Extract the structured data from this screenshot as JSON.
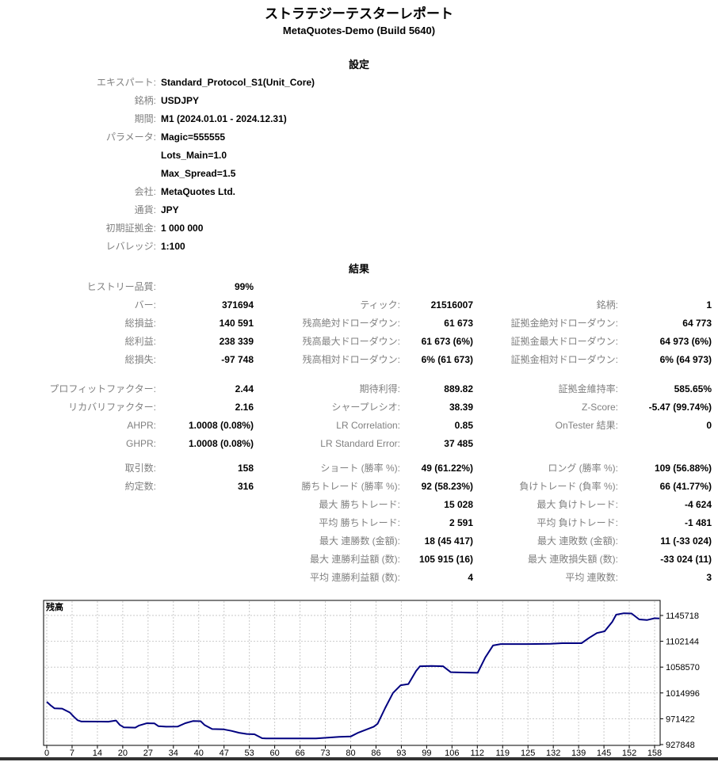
{
  "report": {
    "title": "ストラテジーテスターレポート",
    "subtitle": "MetaQuotes-Demo (Build 5640)"
  },
  "settings": {
    "header": "設定",
    "rows": [
      {
        "label": "エキスパート:",
        "value": "Standard_Protocol_S1(Unit_Core)"
      },
      {
        "label": "銘柄:",
        "value": "USDJPY"
      },
      {
        "label": "期間:",
        "value": "M1 (2024.01.01 - 2024.12.31)"
      },
      {
        "label": "パラメータ:",
        "value": "Magic=555555"
      },
      {
        "label": "",
        "value": "Lots_Main=1.0"
      },
      {
        "label": "",
        "value": "Max_Spread=1.5"
      },
      {
        "label": "会社:",
        "value": "MetaQuotes Ltd."
      },
      {
        "label": "通貨:",
        "value": "JPY"
      },
      {
        "label": "初期証拠金:",
        "value": "1 000 000"
      },
      {
        "label": "レバレッジ:",
        "value": "1:100"
      }
    ]
  },
  "results": {
    "header": "結果",
    "blocks": [
      [
        [
          "ヒストリー品質:",
          "99%",
          "",
          "",
          "",
          ""
        ],
        [
          "バー:",
          "371694",
          "ティック:",
          "21516007",
          "銘柄:",
          "1"
        ],
        [
          "総損益:",
          "140 591",
          "残高絶対ドローダウン:",
          "61 673",
          "証拠金絶対ドローダウン:",
          "64 773"
        ],
        [
          "総利益:",
          "238 339",
          "残高最大ドローダウン:",
          "61 673 (6%)",
          "証拠金最大ドローダウン:",
          "64 973 (6%)"
        ],
        [
          "総損失:",
          "-97 748",
          "残高相対ドローダウン:",
          "6% (61 673)",
          "証拠金相対ドローダウン:",
          "6% (64 973)"
        ]
      ],
      [
        [
          "プロフィットファクター:",
          "2.44",
          "期待利得:",
          "889.82",
          "証拠金維持率:",
          "585.65%"
        ],
        [
          "リカバリファクター:",
          "2.16",
          "シャープレシオ:",
          "38.39",
          "Z-Score:",
          "-5.47 (99.74%)"
        ],
        [
          "AHPR:",
          "1.0008 (0.08%)",
          "LR Correlation:",
          "0.85",
          "OnTester 結果:",
          "0"
        ],
        [
          "GHPR:",
          "1.0008 (0.08%)",
          "LR Standard Error:",
          "37 485",
          "",
          ""
        ]
      ],
      [
        [
          "取引数:",
          "158",
          "ショート (勝率 %):",
          "49 (61.22%)",
          "ロング (勝率 %):",
          "109 (56.88%)"
        ],
        [
          "約定数:",
          "316",
          "勝ちトレード (勝率 %):",
          "92 (58.23%)",
          "負けトレード (負率 %):",
          "66 (41.77%)"
        ],
        [
          "",
          "",
          "最大 勝ちトレード:",
          "15 028",
          "最大 負けトレード:",
          "-4 624"
        ],
        [
          "",
          "",
          "平均 勝ちトレード:",
          "2 591",
          "平均 負けトレード:",
          "-1 481"
        ],
        [
          "",
          "",
          "最大 連勝数 (金額):",
          "18 (45 417)",
          "最大 連敗数 (金額):",
          "11 (-33 024)"
        ],
        [
          "",
          "",
          "最大 連勝利益額 (数):",
          "105 915 (16)",
          "最大 連敗損失額 (数):",
          "-33 024 (11)"
        ],
        [
          "",
          "",
          "平均 連勝利益額 (数):",
          "4",
          "平均 連敗数:",
          "3"
        ]
      ]
    ]
  },
  "chart_data": {
    "type": "line",
    "title": "残高",
    "xlabel": "",
    "ylabel": "残高",
    "grid": true,
    "line_color": "#000080",
    "grid_color": "#c9c9c9",
    "x_ticks": [
      0,
      7,
      14,
      20,
      27,
      34,
      40,
      47,
      53,
      60,
      66,
      73,
      80,
      86,
      93,
      99,
      106,
      112,
      119,
      125,
      132,
      139,
      145,
      152,
      158
    ],
    "y_ticks": [
      927848,
      971422,
      1014996,
      1058570,
      1102144,
      1145718
    ],
    "xlim": [
      0,
      159.5
    ],
    "ylim": [
      927848,
      1152000
    ],
    "series": [
      {
        "name": "残高",
        "x": [
          0,
          1,
          2,
          4,
          6,
          7,
          8,
          9,
          16,
          18,
          19,
          20,
          23,
          24,
          26,
          28,
          29,
          31,
          34,
          36,
          38,
          40,
          41,
          43,
          46,
          48,
          50,
          52,
          54,
          56,
          57,
          62,
          66,
          70,
          73,
          76,
          79,
          81,
          83,
          85,
          86,
          88,
          90,
          92,
          94,
          96,
          97,
          100,
          103,
          105,
          108,
          112,
          114,
          116,
          118,
          125,
          131,
          134,
          139,
          141,
          143,
          145,
          147,
          148,
          150,
          152,
          154,
          156,
          158,
          159.5
        ],
        "y": [
          1000000,
          994000,
          989000,
          988500,
          982000,
          975000,
          969000,
          966800,
          966500,
          968500,
          961000,
          957000,
          956500,
          960000,
          963800,
          963500,
          959000,
          958000,
          958200,
          964000,
          967500,
          967300,
          961000,
          954000,
          953500,
          951000,
          947800,
          945800,
          945200,
          938500,
          938327,
          938327,
          938327,
          938327,
          939500,
          941000,
          941500,
          948000,
          953000,
          958000,
          963000,
          990000,
          1015000,
          1028000,
          1030000,
          1052000,
          1060000,
          1060500,
          1060000,
          1050000,
          1049500,
          1049000,
          1075000,
          1095000,
          1097500,
          1097500,
          1098000,
          1099000,
          1099000,
          1108000,
          1116000,
          1119000,
          1135000,
          1147000,
          1149500,
          1149000,
          1139000,
          1138000,
          1141000,
          1140591
        ]
      }
    ]
  }
}
